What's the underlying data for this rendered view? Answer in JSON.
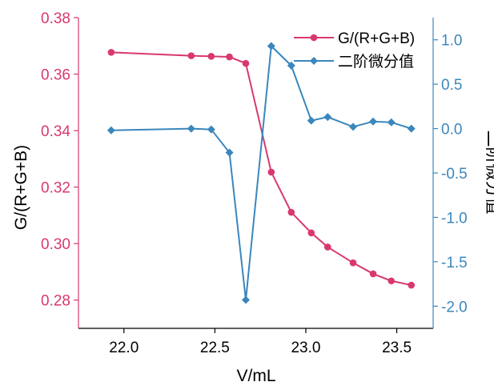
{
  "chart_data": {
    "type": "line",
    "xlabel": "V/mL",
    "ylabel_left": "G/(R+G+B)",
    "ylabel_right": "二阶微分值",
    "xlim": [
      21.75,
      23.7
    ],
    "ylim_left": [
      0.27,
      0.38
    ],
    "ylim_right": [
      -2.25,
      1.25
    ],
    "x_ticks": [
      "22.0",
      "22.5",
      "23.0",
      "23.5"
    ],
    "x_tick_values": [
      22.0,
      22.5,
      23.0,
      23.5
    ],
    "y_left_ticks": [
      "0.28",
      "0.30",
      "0.32",
      "0.34",
      "0.36",
      "0.38"
    ],
    "y_left_tick_values": [
      0.28,
      0.3,
      0.32,
      0.34,
      0.36,
      0.38
    ],
    "y_right_ticks": [
      "-2.0",
      "-1.5",
      "-1.0",
      "-0.5",
      "0.0",
      "0.5",
      "1.0"
    ],
    "y_right_tick_values": [
      -2.0,
      -1.5,
      -1.0,
      -0.5,
      0.0,
      0.5,
      1.0
    ],
    "legend_position": "top-right",
    "grid": false,
    "colors": {
      "left": "#d9386f",
      "right": "#3a87bc"
    },
    "series": [
      {
        "name": "G/(R+G+B)",
        "axis": "left",
        "marker": "circle",
        "x": [
          21.93,
          22.37,
          22.48,
          22.58,
          22.67,
          22.81,
          22.92,
          23.03,
          23.12,
          23.26,
          23.37,
          23.47,
          23.58
        ],
        "y": [
          0.3677,
          0.3665,
          0.3663,
          0.3661,
          0.3638,
          0.3253,
          0.3111,
          0.3038,
          0.2988,
          0.2932,
          0.2893,
          0.2868,
          0.2853
        ]
      },
      {
        "name": "二阶微分值",
        "axis": "right",
        "marker": "diamond",
        "x": [
          21.93,
          22.37,
          22.48,
          22.58,
          22.67,
          22.81,
          22.92,
          23.03,
          23.12,
          23.26,
          23.37,
          23.47,
          23.58
        ],
        "y": [
          -0.02,
          0.0,
          -0.01,
          -0.27,
          -1.93,
          0.93,
          0.71,
          0.09,
          0.13,
          0.02,
          0.08,
          0.07,
          0.0
        ]
      }
    ]
  }
}
